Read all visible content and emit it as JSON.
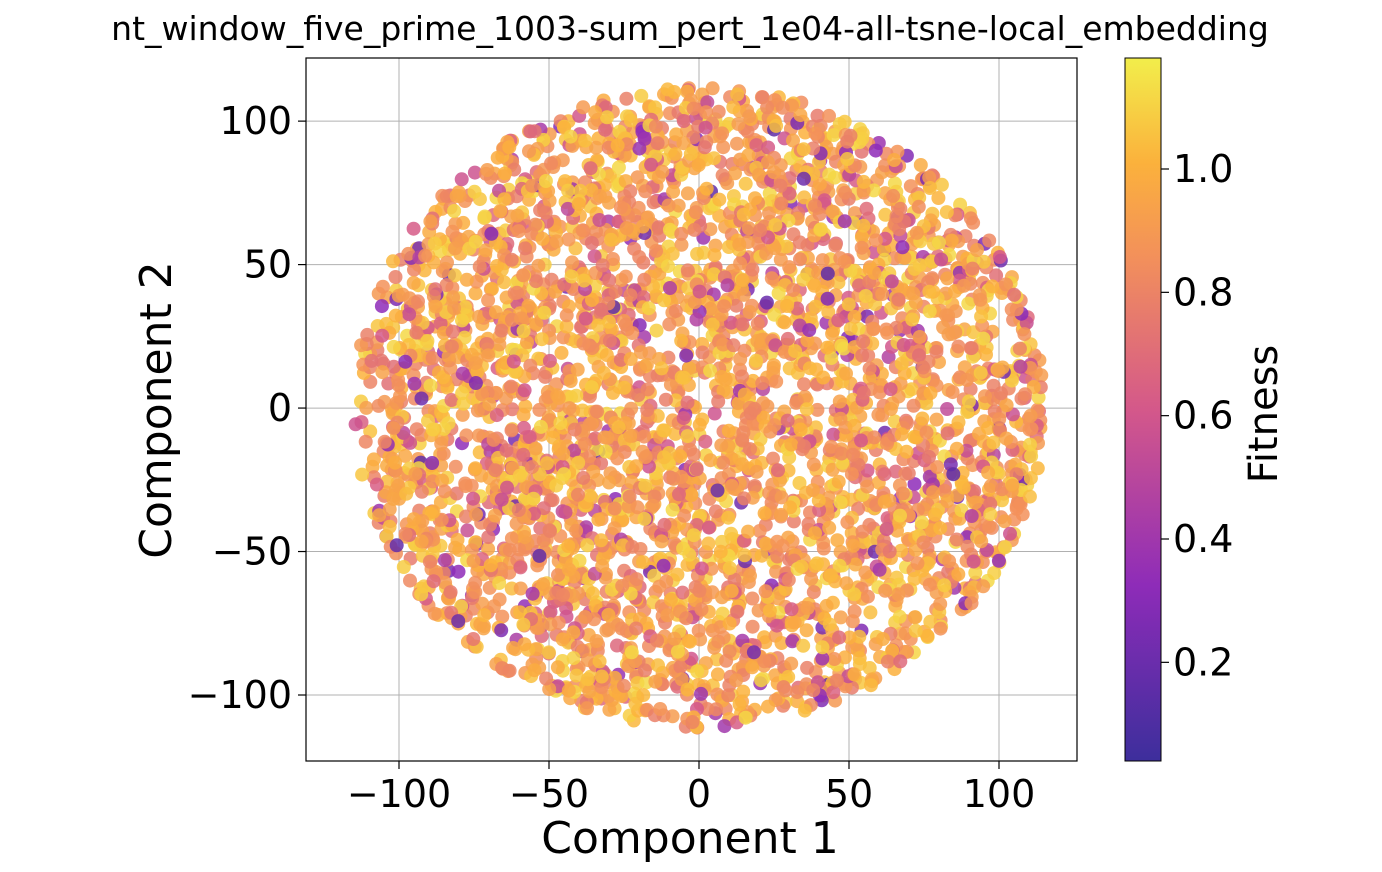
{
  "chart_data": {
    "type": "scatter",
    "title": "nt_window_five_prime_1003-sum_pert_1e04-all-tsne-local_embedding",
    "xlabel": "Component 1",
    "ylabel": "Component 2",
    "xlim": [
      -131,
      126
    ],
    "ylim": [
      -123,
      122
    ],
    "xticks": [
      -100,
      -50,
      0,
      50,
      100
    ],
    "yticks": [
      -100,
      -50,
      0,
      50,
      100
    ],
    "xtick_labels": [
      "−100",
      "−50",
      "0",
      "50",
      "100"
    ],
    "ytick_labels": [
      "−100",
      "−50",
      "0",
      "50",
      "100"
    ],
    "grid": true,
    "colormap": "plasma",
    "color_range": [
      0.04,
      1.18
    ],
    "colorbar": {
      "label": "Fitness",
      "ticks": [
        0.2,
        0.4,
        0.6,
        0.8,
        1.0
      ],
      "tick_labels": [
        "0.2",
        "0.4",
        "0.6",
        "0.8",
        "1.0"
      ],
      "colors": [
        "#3d2e9c",
        "#8e2cb8",
        "#d4588a",
        "#f3915a",
        "#fbb13c",
        "#f2ee4b"
      ]
    },
    "point_color_typical": "#f9a640",
    "points": {
      "count": 4000,
      "shape": "circular cloud",
      "center": [
        0,
        0
      ],
      "radius": 115,
      "fitness_median": 0.95
    }
  }
}
